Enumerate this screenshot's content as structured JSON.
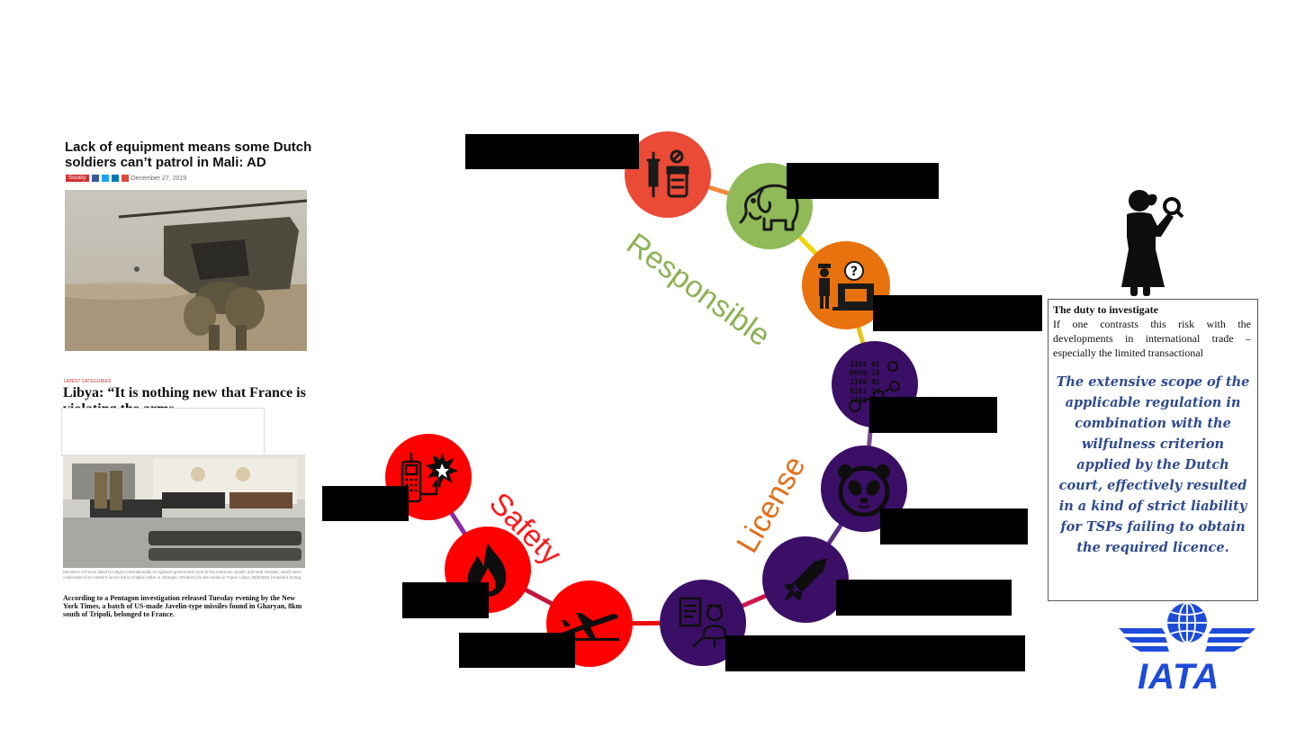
{
  "articles": [
    {
      "title": "Lack of equipment means some Dutch soldiers can’t patrol in Mali: AD",
      "tag": "Society",
      "date": "December 27, 2019",
      "social_icons": [
        "facebook-icon",
        "twitter-icon",
        "linkedin-icon",
        "google-plus-icon"
      ]
    },
    {
      "kicker": "LATEST CATEGORIES",
      "title": "Libya: “It is nothing new that France is violating the arms",
      "caption": "Members of forces allied to Libya's internationally recognised government look at the American Javelin anti-tank missiles, which were confiscated from eastern forces led to Khalifa Haftar in Gharyan, (Reuters) for the media in Tripoli, Libya. 29/6/2019 (Anadolu) Ziraag",
      "body": "According to a Pentagon investigation released Tuesday evening by the New York Times, a batch of US-made Javelin-type missiles found in Gharyan, 8km south of Tripoli, belonged to France."
    }
  ],
  "arc_labels": {
    "responsible": "Responsible",
    "license": "License",
    "safety": "Safety"
  },
  "colors": {
    "responsible": "#8db255",
    "license": "#e1701b",
    "safety": "#ff1a1a",
    "purple": "#3b0f66",
    "red_node": "#ff0000",
    "orange_node": "#e8720e",
    "green_node": "#8fba57",
    "coral_node": "#ea4a36",
    "quote": "#2e4a8f",
    "iata": "#1e4bd8"
  },
  "nodes": [
    {
      "id": "drugs",
      "icon": "syringe-pills-icon"
    },
    {
      "id": "ivory",
      "icon": "elephant-icon"
    },
    {
      "id": "customs",
      "icon": "customs-officer-question-icon"
    },
    {
      "id": "data",
      "icon": "binary-data-search-icon"
    },
    {
      "id": "panda",
      "icon": "panda-icon"
    },
    {
      "id": "missile",
      "icon": "missile-icon"
    },
    {
      "id": "lab",
      "icon": "lab-scientist-icon"
    },
    {
      "id": "plane",
      "icon": "airplane-icon"
    },
    {
      "id": "fire",
      "icon": "fire-icon"
    },
    {
      "id": "detonator",
      "icon": "phone-detonator-explosion-icon"
    }
  ],
  "duty": {
    "title": "The duty to investigate",
    "text": "If one contrasts this risk with the developments in international trade – especially the limited transactional",
    "quote": "The extensive scope of the applicable regulation in combination with the wilfulness criterion applied by the Dutch court, effectively resulted in a kind of strict liability for TSPs failing to obtain the required licence."
  },
  "logo": {
    "text": "IATA"
  },
  "investigator_icon": "investigator-magnifier-icon"
}
